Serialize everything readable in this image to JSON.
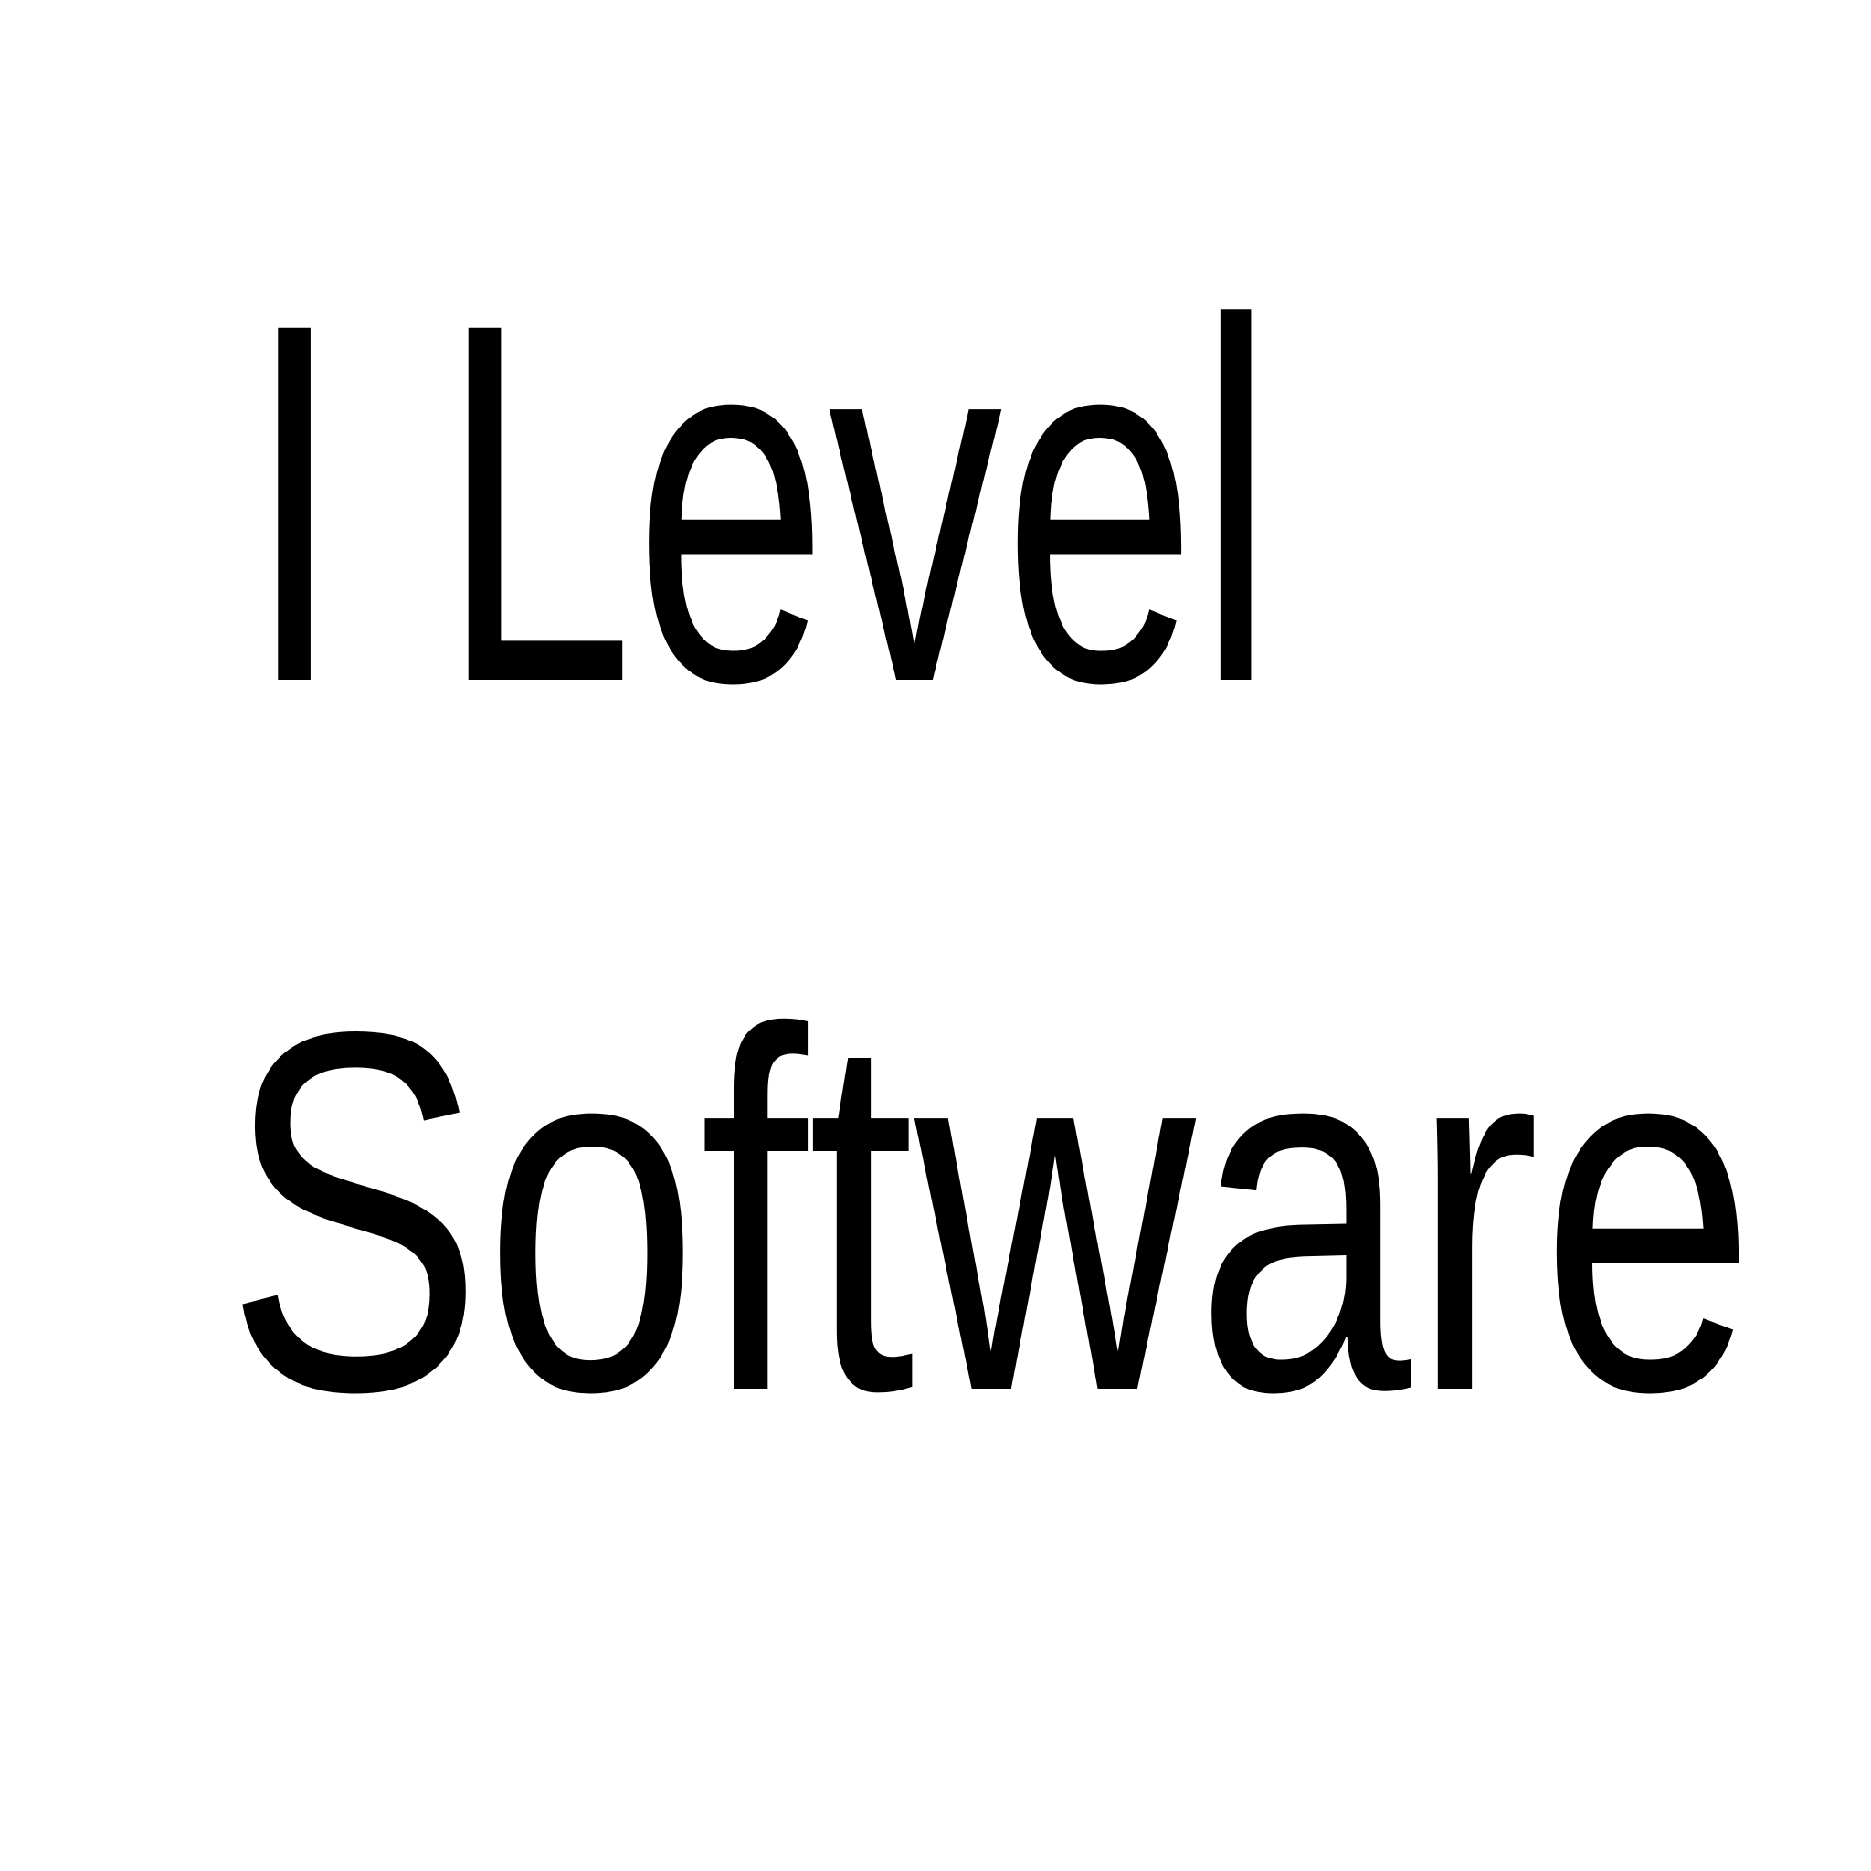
{
  "lines": [
    "I Level",
    "Software"
  ]
}
